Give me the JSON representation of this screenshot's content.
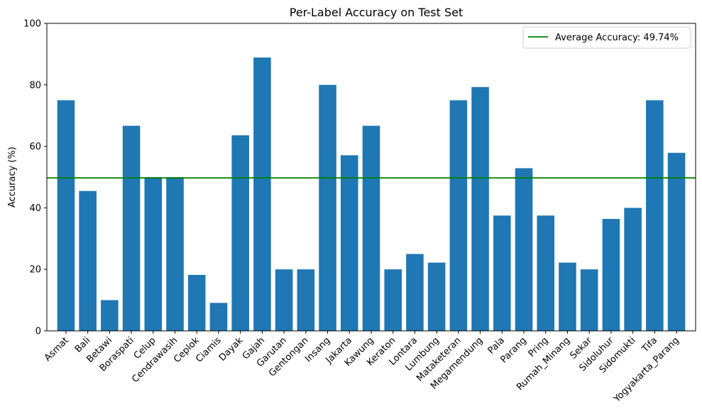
{
  "chart_data": {
    "type": "bar",
    "title": "Per-Label Accuracy on Test Set",
    "xlabel": "",
    "ylabel": "Accuracy (%)",
    "ylim": [
      0,
      100
    ],
    "yticks": [
      0,
      20,
      40,
      60,
      80,
      100
    ],
    "grid": false,
    "legend_position": "top-right",
    "bar_color": "#1f77b4",
    "categories": [
      "Asmat",
      "Bali",
      "Betawi",
      "Boraspati",
      "Celup",
      "Cendrawasih",
      "Ceplok",
      "Ciamis",
      "Dayak",
      "Gajah",
      "Garutan",
      "Gentongan",
      "Insang",
      "Jakarta",
      "Kawung",
      "Keraton",
      "Lontara",
      "Lumbung",
      "Mataketeran",
      "Megamendung",
      "Pala",
      "Parang",
      "Pring",
      "Rumah_Minang",
      "Sekar",
      "Sidoluhur",
      "Sidomukti",
      "Tifa",
      "Yogyakarta_Parang"
    ],
    "values": [
      75.0,
      45.5,
      10.0,
      66.7,
      50.0,
      50.0,
      18.2,
      9.1,
      63.6,
      88.9,
      20.0,
      20.0,
      80.0,
      57.1,
      66.7,
      20.0,
      25.0,
      22.2,
      75.0,
      79.3,
      37.5,
      52.9,
      37.5,
      22.2,
      20.0,
      36.4,
      40.0,
      75.0,
      57.9
    ],
    "reference_line": {
      "value": 49.74,
      "color": "#008000",
      "label": "Average Accuracy: 49.74%"
    }
  }
}
